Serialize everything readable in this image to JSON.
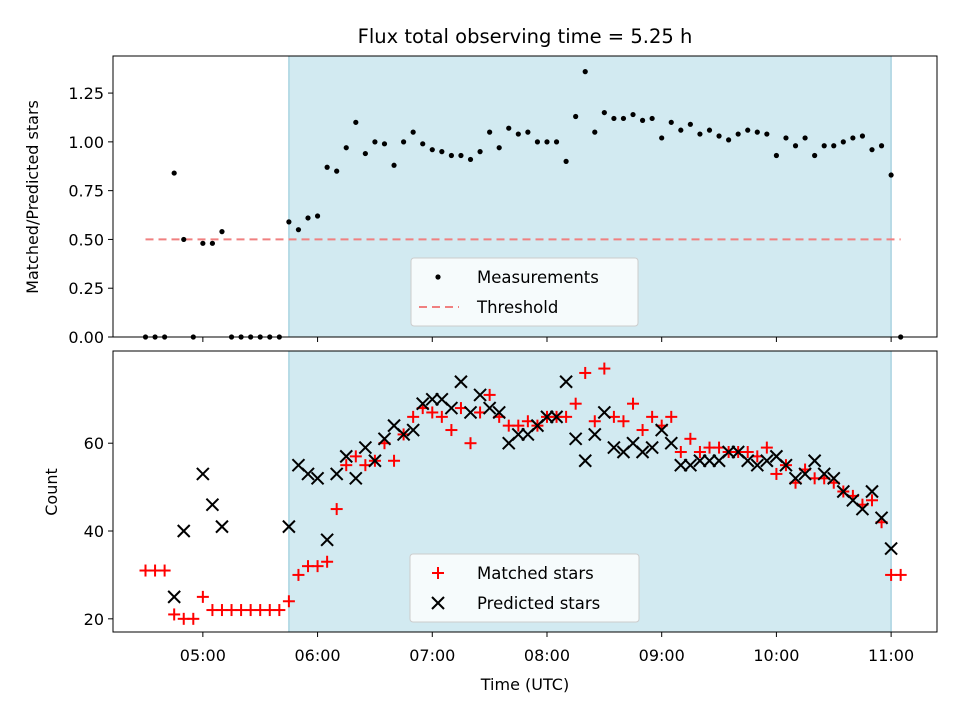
{
  "title": "Flux total observing time = 5.25 h",
  "colors": {
    "band": "#add8e6",
    "measurement": "#000000",
    "threshold": "#f08080",
    "matched": "#ff0000",
    "predicted": "#000000"
  },
  "chart_data": [
    {
      "type": "scatter",
      "ylabel": "Matched/Predicted stars",
      "xlabel": "",
      "xlim": [
        "04:13",
        "11:24"
      ],
      "ylim": [
        0,
        1.44
      ],
      "y_ticks": [
        "0.00",
        "0.25",
        "0.50",
        "0.75",
        "1.00",
        "1.25"
      ],
      "band": {
        "from": "05:45",
        "to": "11:00"
      },
      "threshold": {
        "name": "Threshold",
        "y": 0.5,
        "x_from": "04:30",
        "x_to": "11:05",
        "style": "dashed"
      },
      "legend": {
        "position": "lower center",
        "entries": [
          "Measurements",
          "Threshold"
        ]
      },
      "series": [
        {
          "name": "Measurements",
          "marker": "dot",
          "points": [
            [
              "04:30",
              0
            ],
            [
              "04:35",
              0
            ],
            [
              "04:40",
              0
            ],
            [
              "04:45",
              0.84
            ],
            [
              "04:50",
              0.5
            ],
            [
              "04:55",
              0
            ],
            [
              "05:00",
              0.48
            ],
            [
              "05:05",
              0.48
            ],
            [
              "05:10",
              0.54
            ],
            [
              "05:15",
              0
            ],
            [
              "05:20",
              0
            ],
            [
              "05:25",
              0
            ],
            [
              "05:30",
              0
            ],
            [
              "05:35",
              0
            ],
            [
              "05:40",
              0
            ],
            [
              "05:45",
              0.59
            ],
            [
              "05:50",
              0.55
            ],
            [
              "05:55",
              0.61
            ],
            [
              "06:00",
              0.62
            ],
            [
              "06:05",
              0.87
            ],
            [
              "06:10",
              0.85
            ],
            [
              "06:15",
              0.97
            ],
            [
              "06:20",
              1.1
            ],
            [
              "06:25",
              0.94
            ],
            [
              "06:30",
              1.0
            ],
            [
              "06:35",
              0.99
            ],
            [
              "06:40",
              0.88
            ],
            [
              "06:45",
              1.0
            ],
            [
              "06:50",
              1.05
            ],
            [
              "06:55",
              0.99
            ],
            [
              "07:00",
              0.96
            ],
            [
              "07:05",
              0.95
            ],
            [
              "07:10",
              0.93
            ],
            [
              "07:15",
              0.93
            ],
            [
              "07:20",
              0.91
            ],
            [
              "07:25",
              0.95
            ],
            [
              "07:30",
              1.05
            ],
            [
              "07:35",
              0.97
            ],
            [
              "07:40",
              1.07
            ],
            [
              "07:45",
              1.04
            ],
            [
              "07:50",
              1.05
            ],
            [
              "07:55",
              1.0
            ],
            [
              "08:00",
              1.0
            ],
            [
              "08:05",
              1.0
            ],
            [
              "08:10",
              0.9
            ],
            [
              "08:15",
              1.13
            ],
            [
              "08:20",
              1.36
            ],
            [
              "08:25",
              1.05
            ],
            [
              "08:30",
              1.15
            ],
            [
              "08:35",
              1.12
            ],
            [
              "08:40",
              1.12
            ],
            [
              "08:45",
              1.14
            ],
            [
              "08:50",
              1.11
            ],
            [
              "08:55",
              1.12
            ],
            [
              "09:00",
              1.02
            ],
            [
              "09:05",
              1.1
            ],
            [
              "09:10",
              1.06
            ],
            [
              "09:15",
              1.09
            ],
            [
              "09:20",
              1.04
            ],
            [
              "09:25",
              1.06
            ],
            [
              "09:30",
              1.03
            ],
            [
              "09:35",
              1.01
            ],
            [
              "09:40",
              1.04
            ],
            [
              "09:45",
              1.06
            ],
            [
              "09:50",
              1.05
            ],
            [
              "09:55",
              1.04
            ],
            [
              "10:00",
              0.93
            ],
            [
              "10:05",
              1.02
            ],
            [
              "10:10",
              0.98
            ],
            [
              "10:15",
              1.02
            ],
            [
              "10:20",
              0.93
            ],
            [
              "10:25",
              0.98
            ],
            [
              "10:30",
              0.98
            ],
            [
              "10:35",
              1.0
            ],
            [
              "10:40",
              1.02
            ],
            [
              "10:45",
              1.03
            ],
            [
              "10:50",
              0.96
            ],
            [
              "10:55",
              0.98
            ],
            [
              "11:00",
              0.83
            ],
            [
              "11:05",
              0.0
            ]
          ]
        }
      ]
    },
    {
      "type": "scatter",
      "ylabel": "Count",
      "xlabel": "Time (UTC)",
      "xlim": [
        "04:13",
        "11:24"
      ],
      "ylim": [
        17,
        81
      ],
      "x_ticks": [
        "05:00",
        "06:00",
        "07:00",
        "08:00",
        "09:00",
        "10:00",
        "11:00"
      ],
      "y_ticks": [
        "20",
        "40",
        "60"
      ],
      "band": {
        "from": "05:45",
        "to": "11:00"
      },
      "legend": {
        "position": "lower center",
        "entries": [
          "Matched stars",
          "Predicted stars"
        ]
      },
      "series": [
        {
          "name": "Matched stars",
          "marker": "plus",
          "points": [
            [
              "04:30",
              31
            ],
            [
              "04:35",
              31
            ],
            [
              "04:40",
              31
            ],
            [
              "04:45",
              21
            ],
            [
              "04:50",
              20
            ],
            [
              "04:55",
              20
            ],
            [
              "05:00",
              25
            ],
            [
              "05:05",
              22
            ],
            [
              "05:10",
              22
            ],
            [
              "05:15",
              22
            ],
            [
              "05:20",
              22
            ],
            [
              "05:25",
              22
            ],
            [
              "05:30",
              22
            ],
            [
              "05:35",
              22
            ],
            [
              "05:40",
              22
            ],
            [
              "05:45",
              24
            ],
            [
              "05:50",
              30
            ],
            [
              "05:55",
              32
            ],
            [
              "06:00",
              32
            ],
            [
              "06:05",
              33
            ],
            [
              "06:10",
              45
            ],
            [
              "06:15",
              55
            ],
            [
              "06:20",
              57
            ],
            [
              "06:25",
              55
            ],
            [
              "06:30",
              56
            ],
            [
              "06:35",
              60
            ],
            [
              "06:40",
              56
            ],
            [
              "06:45",
              62
            ],
            [
              "06:50",
              66
            ],
            [
              "06:55",
              68
            ],
            [
              "07:00",
              67
            ],
            [
              "07:05",
              66
            ],
            [
              "07:10",
              63
            ],
            [
              "07:15",
              68
            ],
            [
              "07:20",
              60
            ],
            [
              "07:25",
              67
            ],
            [
              "07:30",
              71
            ],
            [
              "07:35",
              66
            ],
            [
              "07:40",
              64
            ],
            [
              "07:45",
              64
            ],
            [
              "07:50",
              65
            ],
            [
              "07:55",
              64
            ],
            [
              "08:00",
              66
            ],
            [
              "08:05",
              66
            ],
            [
              "08:10",
              66
            ],
            [
              "08:15",
              69
            ],
            [
              "08:20",
              76
            ],
            [
              "08:25",
              65
            ],
            [
              "08:30",
              77
            ],
            [
              "08:35",
              66
            ],
            [
              "08:40",
              65
            ],
            [
              "08:45",
              69
            ],
            [
              "08:50",
              63
            ],
            [
              "08:55",
              66
            ],
            [
              "09:00",
              64
            ],
            [
              "09:05",
              66
            ],
            [
              "09:10",
              58
            ],
            [
              "09:15",
              61
            ],
            [
              "09:20",
              58
            ],
            [
              "09:25",
              59
            ],
            [
              "09:30",
              59
            ],
            [
              "09:35",
              58
            ],
            [
              "09:40",
              58
            ],
            [
              "09:45",
              58
            ],
            [
              "09:50",
              57
            ],
            [
              "09:55",
              59
            ],
            [
              "10:00",
              53
            ],
            [
              "10:05",
              55
            ],
            [
              "10:10",
              51
            ],
            [
              "10:15",
              54
            ],
            [
              "10:20",
              52
            ],
            [
              "10:25",
              52
            ],
            [
              "10:30",
              51
            ],
            [
              "10:35",
              49
            ],
            [
              "10:40",
              48
            ],
            [
              "10:45",
              46
            ],
            [
              "10:50",
              47
            ],
            [
              "10:55",
              42
            ],
            [
              "11:00",
              30
            ],
            [
              "11:05",
              30
            ]
          ]
        },
        {
          "name": "Predicted stars",
          "marker": "x",
          "points": [
            [
              "04:45",
              25
            ],
            [
              "04:50",
              40
            ],
            [
              "05:00",
              53
            ],
            [
              "05:05",
              46
            ],
            [
              "05:10",
              41
            ],
            [
              "05:45",
              41
            ],
            [
              "05:50",
              55
            ],
            [
              "05:55",
              53
            ],
            [
              "06:00",
              52
            ],
            [
              "06:05",
              38
            ],
            [
              "06:10",
              53
            ],
            [
              "06:15",
              57
            ],
            [
              "06:20",
              52
            ],
            [
              "06:25",
              59
            ],
            [
              "06:30",
              56
            ],
            [
              "06:35",
              61
            ],
            [
              "06:40",
              64
            ],
            [
              "06:45",
              62
            ],
            [
              "06:50",
              63
            ],
            [
              "06:55",
              69
            ],
            [
              "07:00",
              70
            ],
            [
              "07:05",
              70
            ],
            [
              "07:10",
              68
            ],
            [
              "07:15",
              74
            ],
            [
              "07:20",
              67
            ],
            [
              "07:25",
              71
            ],
            [
              "07:30",
              68
            ],
            [
              "07:35",
              67
            ],
            [
              "07:40",
              60
            ],
            [
              "07:45",
              62
            ],
            [
              "07:50",
              62
            ],
            [
              "07:55",
              64
            ],
            [
              "08:00",
              66
            ],
            [
              "08:05",
              66
            ],
            [
              "08:10",
              74
            ],
            [
              "08:15",
              61
            ],
            [
              "08:20",
              56
            ],
            [
              "08:25",
              62
            ],
            [
              "08:30",
              67
            ],
            [
              "08:35",
              59
            ],
            [
              "08:40",
              58
            ],
            [
              "08:45",
              60
            ],
            [
              "08:50",
              58
            ],
            [
              "08:55",
              59
            ],
            [
              "09:00",
              63
            ],
            [
              "09:05",
              60
            ],
            [
              "09:10",
              55
            ],
            [
              "09:15",
              55
            ],
            [
              "09:20",
              56
            ],
            [
              "09:25",
              56
            ],
            [
              "09:30",
              56
            ],
            [
              "09:35",
              58
            ],
            [
              "09:40",
              58
            ],
            [
              "09:45",
              56
            ],
            [
              "09:50",
              55
            ],
            [
              "09:55",
              56
            ],
            [
              "10:00",
              57
            ],
            [
              "10:05",
              55
            ],
            [
              "10:10",
              52
            ],
            [
              "10:15",
              53
            ],
            [
              "10:20",
              56
            ],
            [
              "10:25",
              53
            ],
            [
              "10:30",
              52
            ],
            [
              "10:35",
              49
            ],
            [
              "10:40",
              47
            ],
            [
              "10:45",
              45
            ],
            [
              "10:50",
              49
            ],
            [
              "10:55",
              43
            ],
            [
              "11:00",
              36
            ]
          ]
        }
      ]
    }
  ]
}
